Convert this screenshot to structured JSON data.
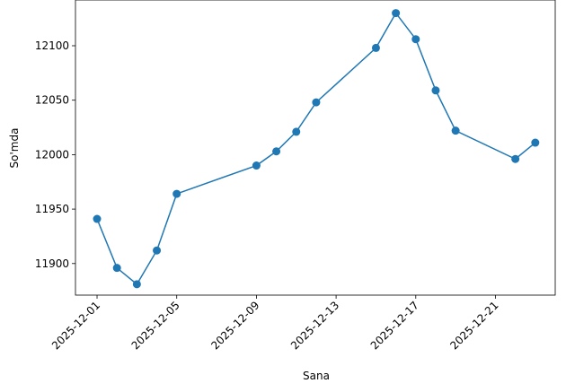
{
  "chart_data": {
    "type": "line",
    "x_label": "Sana",
    "y_label": "So'mda",
    "x": [
      "2025-12-01",
      "2025-12-02",
      "2025-12-03",
      "2025-12-04",
      "2025-12-05",
      "2025-12-09",
      "2025-12-10",
      "2025-12-11",
      "2025-12-12",
      "2025-12-15",
      "2025-12-16",
      "2025-12-17",
      "2025-12-18",
      "2025-12-19",
      "2025-12-22",
      "2025-12-23"
    ],
    "series": [
      {
        "name": "So'mda",
        "color": "#1f77b4",
        "values": [
          11941,
          11896,
          11881,
          11912,
          11964,
          11990,
          12003,
          12021,
          12048,
          12098,
          12130,
          12106,
          12059,
          12022,
          11996,
          12011
        ]
      }
    ],
    "xlim": [
      "2025-11-29T22:00",
      "2025-12-24T00:00"
    ],
    "xticks": [
      "2025-12-01",
      "2025-12-05",
      "2025-12-09",
      "2025-12-13",
      "2025-12-17",
      "2025-12-21"
    ],
    "ylim": [
      11871,
      12142
    ],
    "yticks": [
      11900,
      11950,
      12000,
      12050,
      12100
    ]
  }
}
